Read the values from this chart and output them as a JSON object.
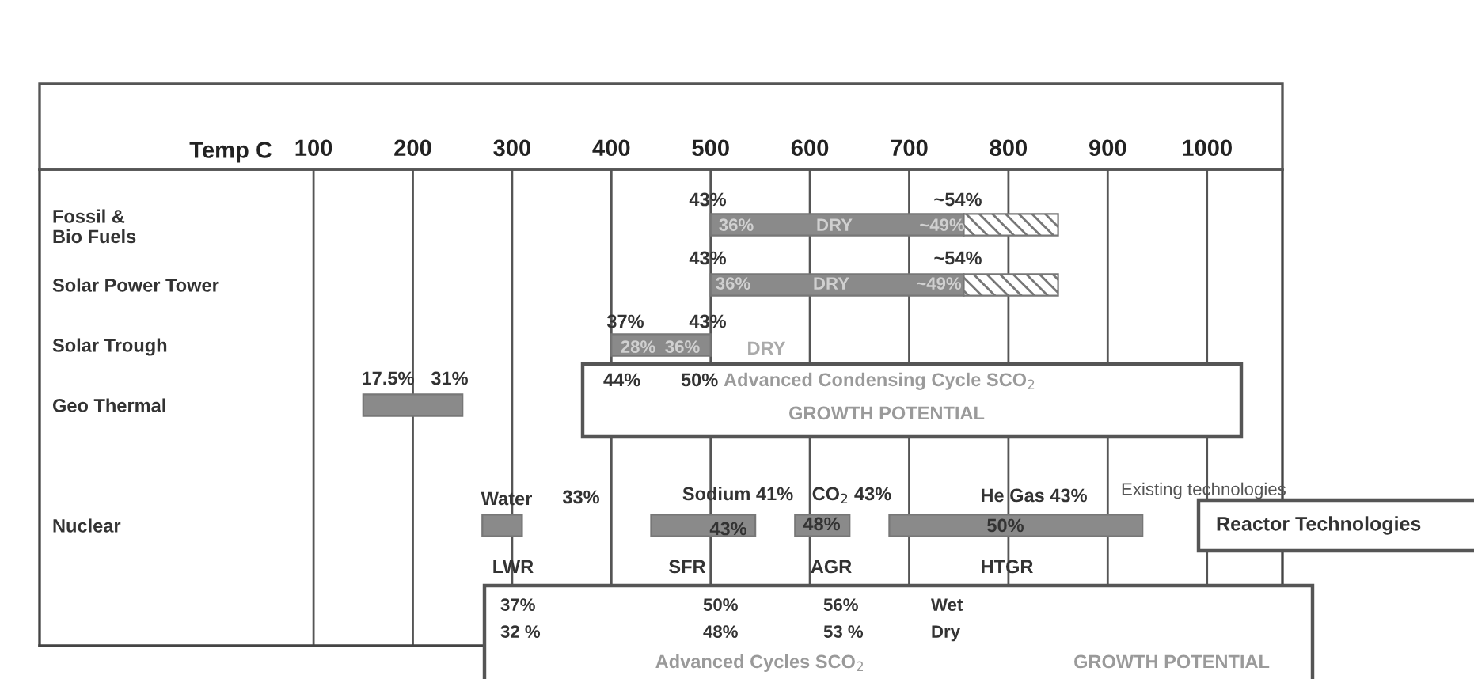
{
  "chart_data": {
    "type": "bar",
    "orientation": "horizontal",
    "xlabel": "Temp C",
    "categories": [
      "Fossil &\nBio Fuels",
      "Solar Power Tower",
      "Solar Trough",
      "Geo Thermal",
      null,
      "Nuclear"
    ],
    "series": [
      {
        "color": "#8a8a8a",
        "base": [
          500,
          500,
          400,
          150,
          null,
          270
        ],
        "values": [
          255,
          255,
          100,
          100,
          null,
          40
        ]
      },
      {
        "color": "#777777",
        "base": [
          755,
          755,
          null,
          null,
          null,
          null
        ],
        "values": [
          95,
          95,
          null,
          null,
          null,
          null
        ]
      },
      {
        "color": "#8a8a8a",
        "base": [
          null,
          null,
          null,
          null,
          null,
          440
        ],
        "values": [
          null,
          null,
          null,
          null,
          null,
          105
        ]
      },
      {
        "color": "#8a8a8a",
        "base": [
          null,
          null,
          null,
          null,
          null,
          585
        ],
        "values": [
          null,
          null,
          null,
          null,
          null,
          55
        ]
      },
      {
        "color": "#8a8a8a",
        "base": [
          null,
          null,
          null,
          null,
          null,
          680
        ],
        "values": [
          null,
          null,
          null,
          null,
          null,
          255
        ]
      }
    ],
    "xlim": [
      -176,
      1076
    ],
    "xticks": [
      100,
      200,
      300,
      400,
      500,
      600,
      700,
      800,
      900,
      1000
    ],
    "grid": "x",
    "annotations": [
      "43%",
      "~54%",
      "36%",
      "DRY",
      "~49%",
      "43%",
      "~54%",
      "36%",
      "DRY",
      "~49%",
      "37%",
      "43%",
      "28%",
      "36%",
      "DRY",
      "17.5%",
      "31%",
      "Water",
      "33%",
      "Sodium 41%",
      "CO$_{2}$ 43%",
      "He Gas 43%",
      "43%",
      "48%",
      "50%",
      "LWR",
      "SFR",
      "AGR",
      "HTGR",
      "44%",
      "50%",
      "Advanced Condensing Cycle SCO$_{2}$",
      "GROWTH POTENTIAL",
      "37%",
      "32 %",
      "50%",
      "48%",
      "56%",
      "53 %",
      "Wet",
      "Dry",
      "Advanced Cycles SCO$_{2}$",
      "GROWTH POTENTIAL",
      "Existing technologies",
      "Reactor Technologies"
    ]
  }
}
